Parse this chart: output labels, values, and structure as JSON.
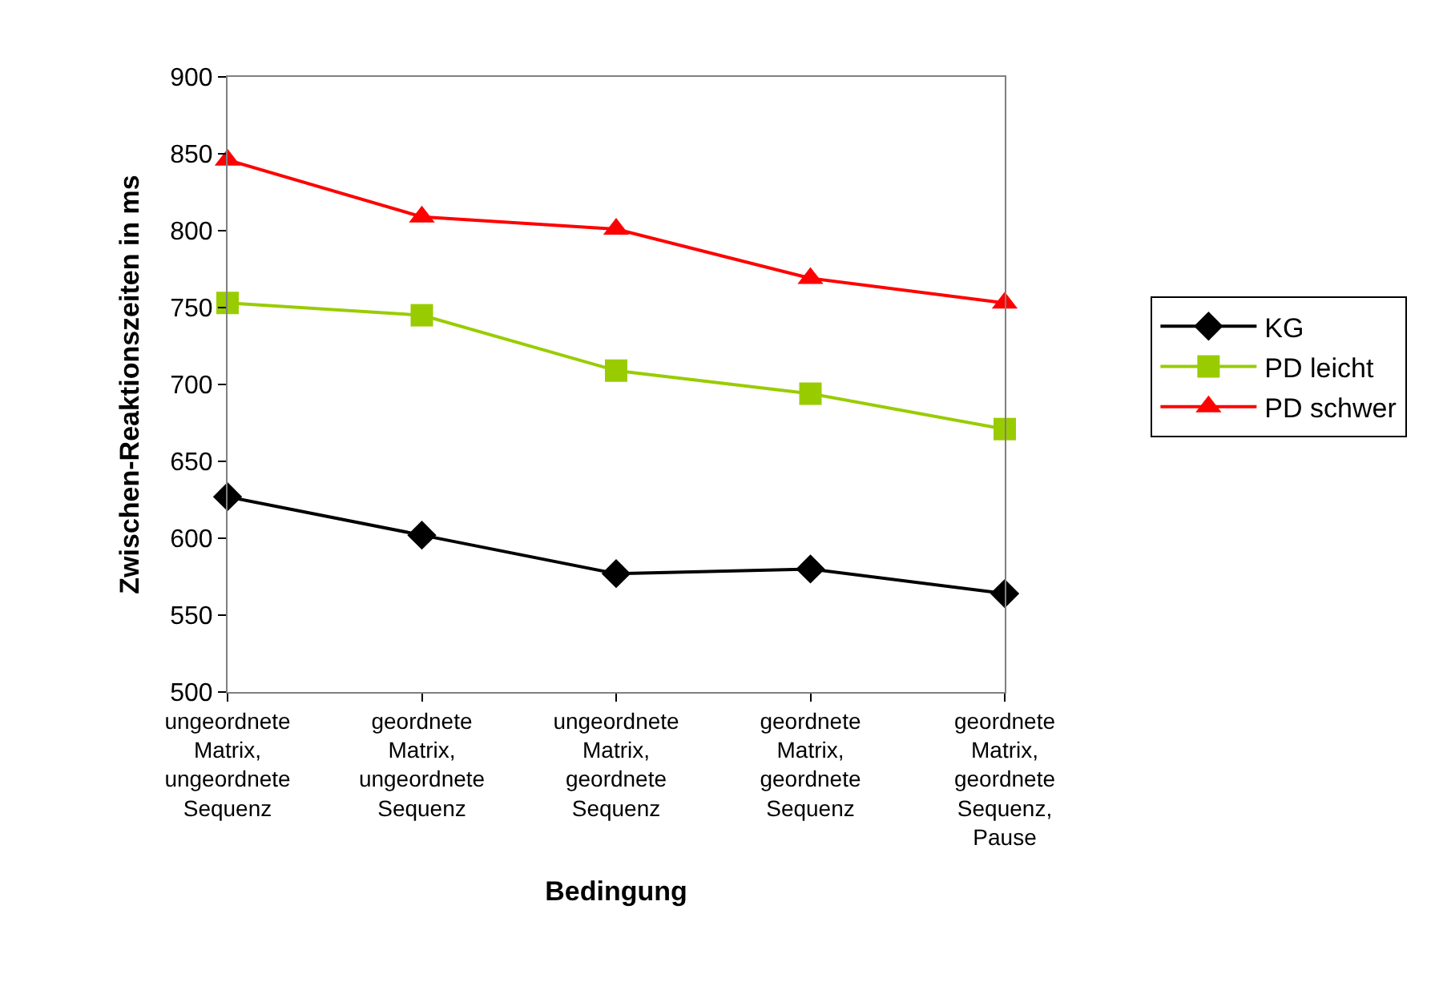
{
  "chart_data": {
    "type": "line",
    "xlabel": "Bedingung",
    "ylabel": "Zwischen-Reaktionszeiten in ms",
    "categories": [
      "ungeordnete Matrix, ungeordnete Sequenz",
      "geordnete Matrix, ungeordnete Sequenz",
      "ungeordnete Matrix, geordnete Sequenz",
      "geordnete Matrix, geordnete Sequenz",
      "geordnete Matrix, geordnete Sequenz, Pause"
    ],
    "series": [
      {
        "name": "KG",
        "color": "#000000",
        "marker": "diamond",
        "values": [
          627,
          602,
          577,
          580,
          564
        ]
      },
      {
        "name": "PD leicht",
        "color": "#99cc00",
        "marker": "square",
        "values": [
          753,
          745,
          709,
          694,
          671
        ]
      },
      {
        "name": "PD schwer",
        "color": "#ff0000",
        "marker": "triangle",
        "values": [
          846,
          809,
          801,
          769,
          753
        ]
      }
    ],
    "ylim": [
      500,
      900
    ],
    "yticks": [
      500,
      550,
      600,
      650,
      700,
      750,
      800,
      850,
      900
    ],
    "grid": false,
    "legend": "right",
    "line_style": "solid"
  }
}
